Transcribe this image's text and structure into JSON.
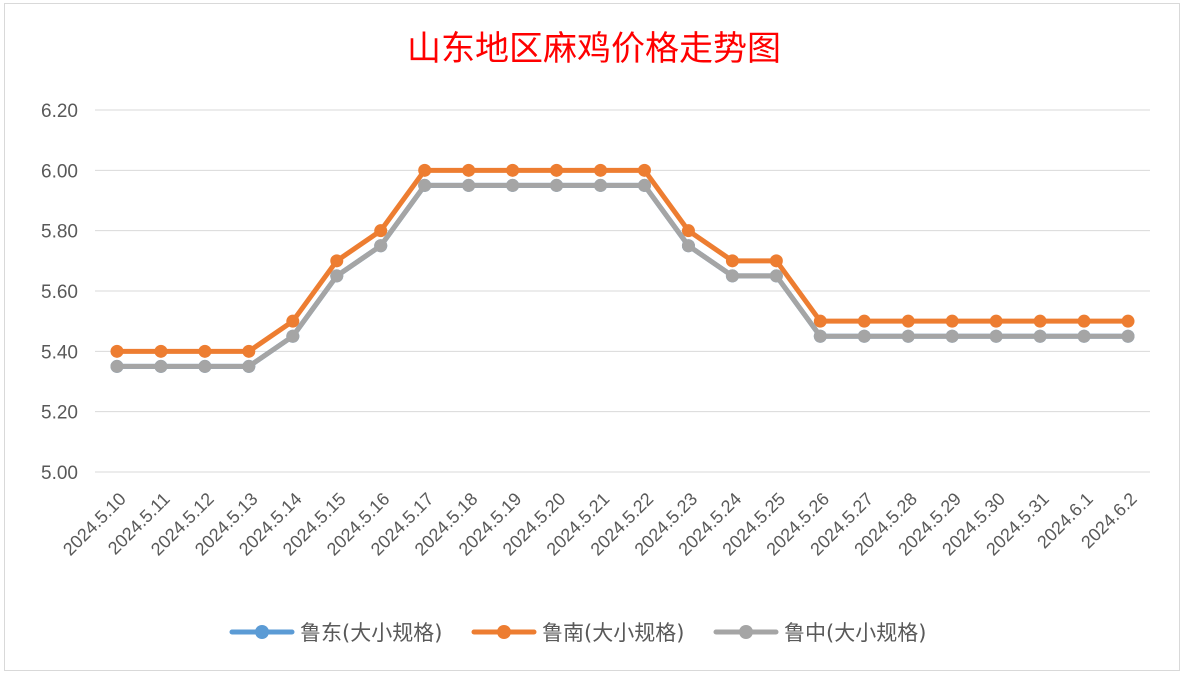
{
  "chart_data": {
    "type": "line",
    "title": "山东地区麻鸡价格走势图",
    "xlabel": "",
    "ylabel": "",
    "ylim": [
      5.0,
      6.2
    ],
    "yticks": [
      "5.00",
      "5.20",
      "5.40",
      "5.60",
      "5.80",
      "6.00",
      "6.20"
    ],
    "grid": true,
    "legend_position": "bottom",
    "categories": [
      "2024.5.10",
      "2024.5.11",
      "2024.5.12",
      "2024.5.13",
      "2024.5.14",
      "2024.5.15",
      "2024.5.16",
      "2024.5.17",
      "2024.5.18",
      "2024.5.19",
      "2024.5.20",
      "2024.5.21",
      "2024.5.22",
      "2024.5.23",
      "2024.5.24",
      "2024.5.25",
      "2024.5.26",
      "2024.5.27",
      "2024.5.28",
      "2024.5.29",
      "2024.5.30",
      "2024.5.31",
      "2024.6.1",
      "2024.6.2"
    ],
    "series": [
      {
        "name": "鲁东(大小规格)",
        "color": "#5b9bd5",
        "values": [
          5.35,
          5.35,
          5.35,
          5.35,
          5.45,
          5.65,
          5.75,
          5.95,
          5.95,
          5.95,
          5.95,
          5.95,
          5.95,
          5.75,
          5.65,
          5.65,
          5.45,
          5.45,
          5.45,
          5.45,
          5.45,
          5.45,
          5.45,
          5.45
        ]
      },
      {
        "name": "鲁南(大小规格)",
        "color": "#ed7d31",
        "values": [
          5.4,
          5.4,
          5.4,
          5.4,
          5.5,
          5.7,
          5.8,
          6.0,
          6.0,
          6.0,
          6.0,
          6.0,
          6.0,
          5.8,
          5.7,
          5.7,
          5.5,
          5.5,
          5.5,
          5.5,
          5.5,
          5.5,
          5.5,
          5.5
        ]
      },
      {
        "name": "鲁中(大小规格)",
        "color": "#a5a5a5",
        "values": [
          5.35,
          5.35,
          5.35,
          5.35,
          5.45,
          5.65,
          5.75,
          5.95,
          5.95,
          5.95,
          5.95,
          5.95,
          5.95,
          5.75,
          5.65,
          5.65,
          5.45,
          5.45,
          5.45,
          5.45,
          5.45,
          5.45,
          5.45,
          5.45
        ]
      }
    ]
  }
}
